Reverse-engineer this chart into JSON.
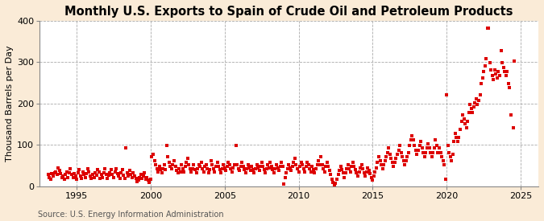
{
  "title": "Monthly U.S. Exports to Spain of Crude Oil and Petroleum Products",
  "ylabel": "Thousand Barrels per Day",
  "source": "Source: U.S. Energy Information Administration",
  "fig_background_color": "#faebd7",
  "plot_background_color": "#ffffff",
  "grid_color": "#aaaaaa",
  "marker_color": "#dd0000",
  "xlim": [
    1992.5,
    2026.2
  ],
  "ylim": [
    0,
    400
  ],
  "yticks": [
    0,
    100,
    200,
    300,
    400
  ],
  "xticks": [
    1995,
    2000,
    2005,
    2010,
    2015,
    2020,
    2025
  ],
  "title_fontsize": 10.5,
  "ylabel_fontsize": 8,
  "tick_fontsize": 8,
  "source_fontsize": 7,
  "marker_size": 5,
  "data": [
    [
      1993.083,
      28
    ],
    [
      1993.167,
      22
    ],
    [
      1993.25,
      18
    ],
    [
      1993.333,
      30
    ],
    [
      1993.417,
      25
    ],
    [
      1993.5,
      32
    ],
    [
      1993.583,
      35
    ],
    [
      1993.667,
      28
    ],
    [
      1993.75,
      45
    ],
    [
      1993.833,
      38
    ],
    [
      1993.917,
      30
    ],
    [
      1994.0,
      22
    ],
    [
      1994.083,
      25
    ],
    [
      1994.167,
      18
    ],
    [
      1994.25,
      28
    ],
    [
      1994.333,
      35
    ],
    [
      1994.417,
      22
    ],
    [
      1994.5,
      32
    ],
    [
      1994.583,
      42
    ],
    [
      1994.667,
      28
    ],
    [
      1994.75,
      22
    ],
    [
      1994.833,
      30
    ],
    [
      1994.917,
      25
    ],
    [
      1995.0,
      18
    ],
    [
      1995.083,
      32
    ],
    [
      1995.167,
      40
    ],
    [
      1995.25,
      25
    ],
    [
      1995.333,
      20
    ],
    [
      1995.417,
      35
    ],
    [
      1995.5,
      28
    ],
    [
      1995.583,
      22
    ],
    [
      1995.667,
      30
    ],
    [
      1995.75,
      42
    ],
    [
      1995.833,
      35
    ],
    [
      1995.917,
      25
    ],
    [
      1996.0,
      20
    ],
    [
      1996.083,
      28
    ],
    [
      1996.167,
      22
    ],
    [
      1996.25,
      32
    ],
    [
      1996.333,
      26
    ],
    [
      1996.417,
      40
    ],
    [
      1996.5,
      35
    ],
    [
      1996.583,
      20
    ],
    [
      1996.667,
      28
    ],
    [
      1996.75,
      22
    ],
    [
      1996.833,
      32
    ],
    [
      1996.917,
      42
    ],
    [
      1997.0,
      28
    ],
    [
      1997.083,
      20
    ],
    [
      1997.167,
      26
    ],
    [
      1997.25,
      32
    ],
    [
      1997.333,
      40
    ],
    [
      1997.417,
      28
    ],
    [
      1997.5,
      22
    ],
    [
      1997.583,
      35
    ],
    [
      1997.667,
      42
    ],
    [
      1997.75,
      30
    ],
    [
      1997.833,
      25
    ],
    [
      1997.917,
      20
    ],
    [
      1998.0,
      32
    ],
    [
      1998.083,
      40
    ],
    [
      1998.167,
      26
    ],
    [
      1998.25,
      20
    ],
    [
      1998.333,
      92
    ],
    [
      1998.417,
      32
    ],
    [
      1998.5,
      25
    ],
    [
      1998.583,
      38
    ],
    [
      1998.667,
      28
    ],
    [
      1998.75,
      22
    ],
    [
      1998.833,
      32
    ],
    [
      1998.917,
      25
    ],
    [
      1999.0,
      20
    ],
    [
      1999.083,
      12
    ],
    [
      1999.167,
      15
    ],
    [
      1999.25,
      22
    ],
    [
      1999.333,
      28
    ],
    [
      1999.417,
      20
    ],
    [
      1999.5,
      25
    ],
    [
      1999.583,
      32
    ],
    [
      1999.667,
      18
    ],
    [
      1999.75,
      22
    ],
    [
      1999.833,
      15
    ],
    [
      1999.917,
      10
    ],
    [
      2000.0,
      18
    ],
    [
      2000.083,
      72
    ],
    [
      2000.167,
      78
    ],
    [
      2000.25,
      62
    ],
    [
      2000.333,
      52
    ],
    [
      2000.417,
      42
    ],
    [
      2000.5,
      35
    ],
    [
      2000.583,
      48
    ],
    [
      2000.667,
      40
    ],
    [
      2000.75,
      32
    ],
    [
      2000.833,
      42
    ],
    [
      2000.917,
      52
    ],
    [
      2001.0,
      40
    ],
    [
      2001.083,
      98
    ],
    [
      2001.167,
      72
    ],
    [
      2001.25,
      58
    ],
    [
      2001.333,
      48
    ],
    [
      2001.417,
      42
    ],
    [
      2001.5,
      52
    ],
    [
      2001.583,
      62
    ],
    [
      2001.667,
      48
    ],
    [
      2001.75,
      38
    ],
    [
      2001.833,
      32
    ],
    [
      2001.917,
      42
    ],
    [
      2002.0,
      35
    ],
    [
      2002.083,
      52
    ],
    [
      2002.167,
      42
    ],
    [
      2002.25,
      35
    ],
    [
      2002.333,
      48
    ],
    [
      2002.417,
      58
    ],
    [
      2002.5,
      68
    ],
    [
      2002.583,
      52
    ],
    [
      2002.667,
      42
    ],
    [
      2002.75,
      35
    ],
    [
      2002.833,
      42
    ],
    [
      2002.917,
      52
    ],
    [
      2003.0,
      40
    ],
    [
      2003.083,
      32
    ],
    [
      2003.167,
      42
    ],
    [
      2003.25,
      52
    ],
    [
      2003.333,
      48
    ],
    [
      2003.417,
      58
    ],
    [
      2003.5,
      42
    ],
    [
      2003.583,
      35
    ],
    [
      2003.667,
      48
    ],
    [
      2003.75,
      52
    ],
    [
      2003.833,
      42
    ],
    [
      2003.917,
      32
    ],
    [
      2004.0,
      40
    ],
    [
      2004.083,
      62
    ],
    [
      2004.167,
      52
    ],
    [
      2004.25,
      42
    ],
    [
      2004.333,
      35
    ],
    [
      2004.417,
      48
    ],
    [
      2004.5,
      58
    ],
    [
      2004.583,
      48
    ],
    [
      2004.667,
      40
    ],
    [
      2004.75,
      32
    ],
    [
      2004.833,
      42
    ],
    [
      2004.917,
      52
    ],
    [
      2005.0,
      45
    ],
    [
      2005.083,
      38
    ],
    [
      2005.167,
      48
    ],
    [
      2005.25,
      58
    ],
    [
      2005.333,
      52
    ],
    [
      2005.417,
      42
    ],
    [
      2005.5,
      35
    ],
    [
      2005.583,
      45
    ],
    [
      2005.667,
      52
    ],
    [
      2005.75,
      98
    ],
    [
      2005.833,
      52
    ],
    [
      2005.917,
      42
    ],
    [
      2006.0,
      38
    ],
    [
      2006.083,
      48
    ],
    [
      2006.167,
      58
    ],
    [
      2006.25,
      48
    ],
    [
      2006.333,
      40
    ],
    [
      2006.417,
      32
    ],
    [
      2006.5,
      42
    ],
    [
      2006.583,
      52
    ],
    [
      2006.667,
      45
    ],
    [
      2006.75,
      38
    ],
    [
      2006.833,
      48
    ],
    [
      2006.917,
      40
    ],
    [
      2007.0,
      32
    ],
    [
      2007.083,
      42
    ],
    [
      2007.167,
      52
    ],
    [
      2007.25,
      45
    ],
    [
      2007.333,
      38
    ],
    [
      2007.417,
      48
    ],
    [
      2007.5,
      58
    ],
    [
      2007.583,
      48
    ],
    [
      2007.667,
      40
    ],
    [
      2007.75,
      32
    ],
    [
      2007.833,
      42
    ],
    [
      2007.917,
      52
    ],
    [
      2008.0,
      45
    ],
    [
      2008.083,
      58
    ],
    [
      2008.167,
      48
    ],
    [
      2008.25,
      40
    ],
    [
      2008.333,
      32
    ],
    [
      2008.417,
      42
    ],
    [
      2008.5,
      52
    ],
    [
      2008.583,
      45
    ],
    [
      2008.667,
      38
    ],
    [
      2008.75,
      48
    ],
    [
      2008.833,
      58
    ],
    [
      2008.917,
      48
    ],
    [
      2009.0,
      5
    ],
    [
      2009.083,
      22
    ],
    [
      2009.167,
      32
    ],
    [
      2009.25,
      42
    ],
    [
      2009.333,
      52
    ],
    [
      2009.417,
      45
    ],
    [
      2009.5,
      38
    ],
    [
      2009.583,
      48
    ],
    [
      2009.667,
      58
    ],
    [
      2009.75,
      68
    ],
    [
      2009.833,
      52
    ],
    [
      2009.917,
      42
    ],
    [
      2010.0,
      35
    ],
    [
      2010.083,
      48
    ],
    [
      2010.167,
      58
    ],
    [
      2010.25,
      52
    ],
    [
      2010.333,
      42
    ],
    [
      2010.417,
      35
    ],
    [
      2010.5,
      48
    ],
    [
      2010.583,
      58
    ],
    [
      2010.667,
      52
    ],
    [
      2010.75,
      42
    ],
    [
      2010.833,
      35
    ],
    [
      2010.917,
      48
    ],
    [
      2011.0,
      40
    ],
    [
      2011.083,
      32
    ],
    [
      2011.167,
      42
    ],
    [
      2011.25,
      52
    ],
    [
      2011.333,
      62
    ],
    [
      2011.417,
      52
    ],
    [
      2011.5,
      72
    ],
    [
      2011.583,
      52
    ],
    [
      2011.667,
      42
    ],
    [
      2011.75,
      35
    ],
    [
      2011.833,
      48
    ],
    [
      2011.917,
      58
    ],
    [
      2012.0,
      48
    ],
    [
      2012.083,
      38
    ],
    [
      2012.167,
      28
    ],
    [
      2012.25,
      18
    ],
    [
      2012.333,
      10
    ],
    [
      2012.417,
      3
    ],
    [
      2012.5,
      8
    ],
    [
      2012.583,
      18
    ],
    [
      2012.667,
      28
    ],
    [
      2012.75,
      38
    ],
    [
      2012.833,
      48
    ],
    [
      2012.917,
      40
    ],
    [
      2013.0,
      32
    ],
    [
      2013.083,
      22
    ],
    [
      2013.167,
      32
    ],
    [
      2013.25,
      42
    ],
    [
      2013.333,
      52
    ],
    [
      2013.417,
      42
    ],
    [
      2013.5,
      35
    ],
    [
      2013.583,
      48
    ],
    [
      2013.667,
      58
    ],
    [
      2013.75,
      48
    ],
    [
      2013.833,
      40
    ],
    [
      2013.917,
      32
    ],
    [
      2014.0,
      25
    ],
    [
      2014.083,
      35
    ],
    [
      2014.167,
      45
    ],
    [
      2014.25,
      52
    ],
    [
      2014.333,
      42
    ],
    [
      2014.417,
      32
    ],
    [
      2014.5,
      25
    ],
    [
      2014.583,
      35
    ],
    [
      2014.667,
      45
    ],
    [
      2014.75,
      38
    ],
    [
      2014.833,
      30
    ],
    [
      2014.917,
      22
    ],
    [
      2015.0,
      15
    ],
    [
      2015.083,
      25
    ],
    [
      2015.167,
      35
    ],
    [
      2015.25,
      45
    ],
    [
      2015.333,
      58
    ],
    [
      2015.417,
      72
    ],
    [
      2015.5,
      62
    ],
    [
      2015.583,
      52
    ],
    [
      2015.667,
      42
    ],
    [
      2015.75,
      52
    ],
    [
      2015.833,
      62
    ],
    [
      2015.917,
      72
    ],
    [
      2016.0,
      82
    ],
    [
      2016.083,
      92
    ],
    [
      2016.167,
      78
    ],
    [
      2016.25,
      68
    ],
    [
      2016.333,
      58
    ],
    [
      2016.417,
      48
    ],
    [
      2016.5,
      58
    ],
    [
      2016.583,
      68
    ],
    [
      2016.667,
      78
    ],
    [
      2016.75,
      88
    ],
    [
      2016.833,
      98
    ],
    [
      2016.917,
      82
    ],
    [
      2017.0,
      72
    ],
    [
      2017.083,
      62
    ],
    [
      2017.167,
      52
    ],
    [
      2017.25,
      62
    ],
    [
      2017.333,
      72
    ],
    [
      2017.417,
      82
    ],
    [
      2017.5,
      98
    ],
    [
      2017.583,
      112
    ],
    [
      2017.667,
      122
    ],
    [
      2017.75,
      112
    ],
    [
      2017.833,
      98
    ],
    [
      2017.917,
      88
    ],
    [
      2018.0,
      78
    ],
    [
      2018.083,
      88
    ],
    [
      2018.167,
      98
    ],
    [
      2018.25,
      108
    ],
    [
      2018.333,
      92
    ],
    [
      2018.417,
      82
    ],
    [
      2018.5,
      72
    ],
    [
      2018.583,
      82
    ],
    [
      2018.667,
      92
    ],
    [
      2018.75,
      102
    ],
    [
      2018.833,
      92
    ],
    [
      2018.917,
      82
    ],
    [
      2019.0,
      72
    ],
    [
      2019.083,
      82
    ],
    [
      2019.167,
      92
    ],
    [
      2019.25,
      112
    ],
    [
      2019.333,
      98
    ],
    [
      2019.417,
      82
    ],
    [
      2019.5,
      92
    ],
    [
      2019.583,
      82
    ],
    [
      2019.667,
      72
    ],
    [
      2019.75,
      62
    ],
    [
      2019.833,
      52
    ],
    [
      2019.917,
      18
    ],
    [
      2020.0,
      222
    ],
    [
      2020.083,
      98
    ],
    [
      2020.167,
      82
    ],
    [
      2020.25,
      72
    ],
    [
      2020.333,
      62
    ],
    [
      2020.417,
      78
    ],
    [
      2020.5,
      108
    ],
    [
      2020.583,
      128
    ],
    [
      2020.667,
      118
    ],
    [
      2020.75,
      108
    ],
    [
      2020.833,
      118
    ],
    [
      2020.917,
      138
    ],
    [
      2021.0,
      158
    ],
    [
      2021.083,
      172
    ],
    [
      2021.167,
      162
    ],
    [
      2021.25,
      152
    ],
    [
      2021.333,
      142
    ],
    [
      2021.417,
      158
    ],
    [
      2021.5,
      178
    ],
    [
      2021.583,
      198
    ],
    [
      2021.667,
      188
    ],
    [
      2021.75,
      178
    ],
    [
      2021.833,
      192
    ],
    [
      2021.917,
      202
    ],
    [
      2022.0,
      212
    ],
    [
      2022.083,
      198
    ],
    [
      2022.167,
      208
    ],
    [
      2022.25,
      222
    ],
    [
      2022.333,
      248
    ],
    [
      2022.417,
      262
    ],
    [
      2022.5,
      278
    ],
    [
      2022.583,
      292
    ],
    [
      2022.667,
      308
    ],
    [
      2022.75,
      382
    ],
    [
      2022.833,
      382
    ],
    [
      2022.917,
      298
    ],
    [
      2023.0,
      282
    ],
    [
      2023.083,
      268
    ],
    [
      2023.167,
      258
    ],
    [
      2023.25,
      282
    ],
    [
      2023.333,
      272
    ],
    [
      2023.417,
      262
    ],
    [
      2023.5,
      278
    ],
    [
      2023.583,
      268
    ],
    [
      2023.667,
      328
    ],
    [
      2023.75,
      298
    ],
    [
      2023.833,
      288
    ],
    [
      2023.917,
      278
    ],
    [
      2024.0,
      268
    ],
    [
      2024.083,
      278
    ],
    [
      2024.167,
      248
    ],
    [
      2024.25,
      238
    ],
    [
      2024.333,
      172
    ],
    [
      2024.5,
      142
    ],
    [
      2024.583,
      302
    ]
  ]
}
